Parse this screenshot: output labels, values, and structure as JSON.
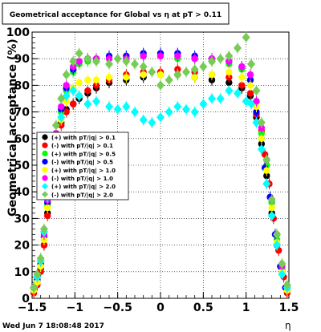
{
  "chart_data": {
    "type": "scatter",
    "title": "Geometrical acceptance for Global vs   η at pT > 0.11",
    "xlabel": "η",
    "ylabel": "Geometrical acceptance (%)",
    "footer": "Wed Jun  7 18:08:48 2017",
    "xlim": [
      -1.5,
      1.5
    ],
    "ylim": [
      0,
      100
    ],
    "xticks": [
      -1.5,
      -1,
      -0.5,
      0,
      0.5,
      1,
      1.5
    ],
    "xtick_labels": [
      "−1.5",
      "−1",
      "−0.5",
      "0",
      "0.5",
      "1",
      "1.5"
    ],
    "yticks": [
      0,
      10,
      20,
      30,
      40,
      50,
      60,
      70,
      80,
      90,
      100
    ],
    "ytick_labels": [
      "0",
      "10",
      "20",
      "30",
      "40",
      "50",
      "60",
      "70",
      "80",
      "90",
      "100"
    ],
    "grid": true,
    "legend_position": "left-middle",
    "legend": [
      {
        "label": "(+) with pT/|q| > 0.1",
        "color": "#000000"
      },
      {
        "label": "(-) with pT/|q| > 0.1",
        "color": "#ff0000"
      },
      {
        "label": "(+) with pT/|q| > 0.5",
        "color": "#00ff00"
      },
      {
        "label": "(-) with pT/|q| > 0.5",
        "color": "#0000ff"
      },
      {
        "label": "(+) with pT/|q| > 1.0",
        "color": "#ffff00"
      },
      {
        "label": "(-) with pT/|q| > 1.0",
        "color": "#ff00ff"
      },
      {
        "label": "(+) with pT/|q| > 2.0",
        "color": "#00ffff"
      },
      {
        "label": "(-) with pT/|q| > 2.0",
        "color": "#77cc55"
      }
    ],
    "series": [
      {
        "color": "#000000",
        "marker": "circle",
        "points": [
          [
            -1.48,
            3
          ],
          [
            -1.44,
            6
          ],
          [
            -1.4,
            11
          ],
          [
            -1.36,
            20
          ],
          [
            -1.32,
            32
          ],
          [
            -1.28,
            45
          ],
          [
            -1.22,
            56
          ],
          [
            -1.16,
            66
          ],
          [
            -1.1,
            71
          ],
          [
            -1.02,
            73
          ],
          [
            -0.95,
            75
          ],
          [
            -0.85,
            77
          ],
          [
            -0.75,
            79
          ],
          [
            -0.6,
            81
          ],
          [
            -0.4,
            82
          ],
          [
            -0.2,
            83
          ],
          [
            0,
            84
          ],
          [
            0.2,
            84
          ],
          [
            0.4,
            83
          ],
          [
            0.6,
            82
          ],
          [
            0.8,
            81
          ],
          [
            0.95,
            79
          ],
          [
            1.05,
            76
          ],
          [
            1.12,
            68
          ],
          [
            1.18,
            58
          ],
          [
            1.24,
            46
          ],
          [
            1.3,
            32
          ],
          [
            1.36,
            20
          ],
          [
            1.42,
            10
          ],
          [
            1.48,
            3
          ]
        ]
      },
      {
        "color": "#ff0000",
        "marker": "circle",
        "points": [
          [
            -1.48,
            2
          ],
          [
            -1.44,
            5
          ],
          [
            -1.4,
            10
          ],
          [
            -1.36,
            20
          ],
          [
            -1.32,
            31
          ],
          [
            -1.28,
            44
          ],
          [
            -1.22,
            55
          ],
          [
            -1.16,
            65
          ],
          [
            -1.1,
            70
          ],
          [
            -1.02,
            73
          ],
          [
            -0.95,
            76
          ],
          [
            -0.85,
            78
          ],
          [
            -0.75,
            80
          ],
          [
            -0.6,
            82
          ],
          [
            -0.4,
            84
          ],
          [
            -0.2,
            85
          ],
          [
            0,
            85
          ],
          [
            0.2,
            86
          ],
          [
            0.4,
            85
          ],
          [
            0.6,
            84
          ],
          [
            0.8,
            83
          ],
          [
            0.95,
            80
          ],
          [
            1.05,
            77
          ],
          [
            1.12,
            69
          ],
          [
            1.18,
            63
          ],
          [
            1.22,
            54
          ],
          [
            1.27,
            43
          ],
          [
            1.32,
            30
          ],
          [
            1.38,
            18
          ],
          [
            1.44,
            8
          ],
          [
            1.48,
            2
          ]
        ]
      },
      {
        "color": "#00ff00",
        "marker": "circle",
        "points": [
          [
            -1.48,
            3
          ],
          [
            -1.44,
            7
          ],
          [
            -1.4,
            12
          ],
          [
            -1.36,
            22
          ],
          [
            -1.32,
            35
          ],
          [
            -1.28,
            48
          ],
          [
            -1.22,
            60
          ],
          [
            -1.16,
            70
          ],
          [
            -1.1,
            78
          ],
          [
            -1.02,
            85
          ],
          [
            -0.95,
            88
          ],
          [
            -0.85,
            89
          ],
          [
            -0.75,
            89
          ],
          [
            -0.6,
            90
          ],
          [
            -0.4,
            90
          ],
          [
            -0.2,
            91
          ],
          [
            0,
            91
          ],
          [
            0.2,
            90
          ],
          [
            0.4,
            90
          ],
          [
            0.6,
            89
          ],
          [
            0.8,
            88
          ],
          [
            0.95,
            86
          ],
          [
            1.05,
            82
          ],
          [
            1.12,
            74
          ],
          [
            1.18,
            62
          ],
          [
            1.24,
            50
          ],
          [
            1.3,
            36
          ],
          [
            1.36,
            22
          ],
          [
            1.42,
            11
          ],
          [
            1.48,
            3
          ]
        ]
      },
      {
        "color": "#0000ff",
        "marker": "circle",
        "points": [
          [
            -1.48,
            3
          ],
          [
            -1.44,
            7
          ],
          [
            -1.4,
            13
          ],
          [
            -1.36,
            23
          ],
          [
            -1.32,
            36
          ],
          [
            -1.28,
            49
          ],
          [
            -1.22,
            61
          ],
          [
            -1.16,
            71
          ],
          [
            -1.1,
            79
          ],
          [
            -1.02,
            86
          ],
          [
            -0.95,
            89
          ],
          [
            -0.85,
            90
          ],
          [
            -0.75,
            90
          ],
          [
            -0.6,
            91
          ],
          [
            -0.4,
            91
          ],
          [
            -0.2,
            92
          ],
          [
            0,
            92
          ],
          [
            0.2,
            92
          ],
          [
            0.4,
            91
          ],
          [
            0.6,
            90
          ],
          [
            0.8,
            89
          ],
          [
            0.95,
            87
          ],
          [
            1.05,
            82
          ],
          [
            1.12,
            70
          ],
          [
            1.18,
            60
          ],
          [
            1.22,
            49
          ],
          [
            1.28,
            38
          ],
          [
            1.34,
            24
          ],
          [
            1.4,
            12
          ],
          [
            1.46,
            4
          ]
        ]
      },
      {
        "color": "#ffff00",
        "marker": "circle",
        "points": [
          [
            -1.48,
            3
          ],
          [
            -1.44,
            6
          ],
          [
            -1.4,
            12
          ],
          [
            -1.36,
            22
          ],
          [
            -1.32,
            34
          ],
          [
            -1.28,
            46
          ],
          [
            -1.22,
            58
          ],
          [
            -1.16,
            67
          ],
          [
            -1.1,
            74
          ],
          [
            -1.02,
            79
          ],
          [
            -0.95,
            81
          ],
          [
            -0.85,
            82
          ],
          [
            -0.75,
            82
          ],
          [
            -0.6,
            83
          ],
          [
            -0.4,
            83
          ],
          [
            -0.2,
            84
          ],
          [
            0,
            84
          ],
          [
            0.2,
            84
          ],
          [
            0.4,
            83
          ],
          [
            0.6,
            84
          ],
          [
            0.8,
            85
          ],
          [
            0.95,
            83
          ],
          [
            1.05,
            80
          ],
          [
            1.12,
            72
          ],
          [
            1.18,
            60
          ],
          [
            1.24,
            48
          ],
          [
            1.3,
            34
          ],
          [
            1.36,
            21
          ],
          [
            1.42,
            10
          ],
          [
            1.48,
            3
          ]
        ]
      },
      {
        "color": "#ff00ff",
        "marker": "circle",
        "points": [
          [
            -1.48,
            4
          ],
          [
            -1.44,
            8
          ],
          [
            -1.4,
            14
          ],
          [
            -1.36,
            24
          ],
          [
            -1.32,
            37
          ],
          [
            -1.28,
            50
          ],
          [
            -1.22,
            62
          ],
          [
            -1.16,
            72
          ],
          [
            -1.1,
            80
          ],
          [
            -1.02,
            87
          ],
          [
            -0.95,
            89
          ],
          [
            -0.85,
            90
          ],
          [
            -0.75,
            90
          ],
          [
            -0.6,
            90
          ],
          [
            -0.4,
            90
          ],
          [
            -0.2,
            91
          ],
          [
            0,
            91
          ],
          [
            0.2,
            91
          ],
          [
            0.4,
            90
          ],
          [
            0.6,
            90
          ],
          [
            0.8,
            89
          ],
          [
            0.95,
            87
          ],
          [
            1.05,
            84
          ],
          [
            1.12,
            74
          ],
          [
            1.18,
            64
          ],
          [
            1.24,
            52
          ],
          [
            1.3,
            37
          ],
          [
            1.36,
            24
          ],
          [
            1.42,
            12
          ],
          [
            1.48,
            4
          ]
        ]
      },
      {
        "color": "#00ffff",
        "marker": "diamond",
        "points": [
          [
            -1.48,
            4
          ],
          [
            -1.44,
            8
          ],
          [
            -1.4,
            14
          ],
          [
            -1.36,
            25
          ],
          [
            -1.32,
            38
          ],
          [
            -1.28,
            50
          ],
          [
            -1.22,
            60
          ],
          [
            -1.16,
            68
          ],
          [
            -1.1,
            76
          ],
          [
            -1.02,
            78
          ],
          [
            -0.95,
            76
          ],
          [
            -0.85,
            73
          ],
          [
            -0.75,
            74
          ],
          [
            -0.6,
            72
          ],
          [
            -0.5,
            71
          ],
          [
            -0.4,
            72
          ],
          [
            -0.3,
            70
          ],
          [
            -0.2,
            67
          ],
          [
            -0.1,
            66
          ],
          [
            0,
            68
          ],
          [
            0.1,
            70
          ],
          [
            0.2,
            72
          ],
          [
            0.3,
            71
          ],
          [
            0.4,
            70
          ],
          [
            0.5,
            73
          ],
          [
            0.6,
            75
          ],
          [
            0.7,
            75
          ],
          [
            0.8,
            78
          ],
          [
            0.9,
            77
          ],
          [
            1.0,
            74
          ],
          [
            1.06,
            73
          ],
          [
            1.12,
            66
          ],
          [
            1.18,
            56
          ],
          [
            1.24,
            43
          ],
          [
            1.3,
            31
          ],
          [
            1.36,
            20
          ],
          [
            1.42,
            9
          ],
          [
            1.48,
            4
          ]
        ]
      },
      {
        "color": "#77cc55",
        "marker": "diamond",
        "points": [
          [
            -1.48,
            4
          ],
          [
            -1.44,
            9
          ],
          [
            -1.4,
            15
          ],
          [
            -1.36,
            26
          ],
          [
            -1.32,
            40
          ],
          [
            -1.28,
            53
          ],
          [
            -1.22,
            65
          ],
          [
            -1.16,
            75
          ],
          [
            -1.1,
            84
          ],
          [
            -1.02,
            89
          ],
          [
            -0.95,
            92
          ],
          [
            -0.85,
            90
          ],
          [
            -0.75,
            89
          ],
          [
            -0.6,
            88
          ],
          [
            -0.5,
            90
          ],
          [
            -0.4,
            89
          ],
          [
            -0.3,
            88
          ],
          [
            -0.2,
            87
          ],
          [
            -0.1,
            85
          ],
          [
            0,
            80
          ],
          [
            0.1,
            82
          ],
          [
            0.2,
            84
          ],
          [
            0.3,
            85
          ],
          [
            0.4,
            86
          ],
          [
            0.5,
            87
          ],
          [
            0.6,
            89
          ],
          [
            0.7,
            90
          ],
          [
            0.8,
            91
          ],
          [
            0.9,
            94
          ],
          [
            1.0,
            98
          ],
          [
            1.06,
            88
          ],
          [
            1.12,
            78
          ],
          [
            1.18,
            66
          ],
          [
            1.24,
            52
          ],
          [
            1.3,
            37
          ],
          [
            1.36,
            24
          ],
          [
            1.42,
            13
          ],
          [
            1.48,
            5
          ]
        ]
      }
    ]
  }
}
